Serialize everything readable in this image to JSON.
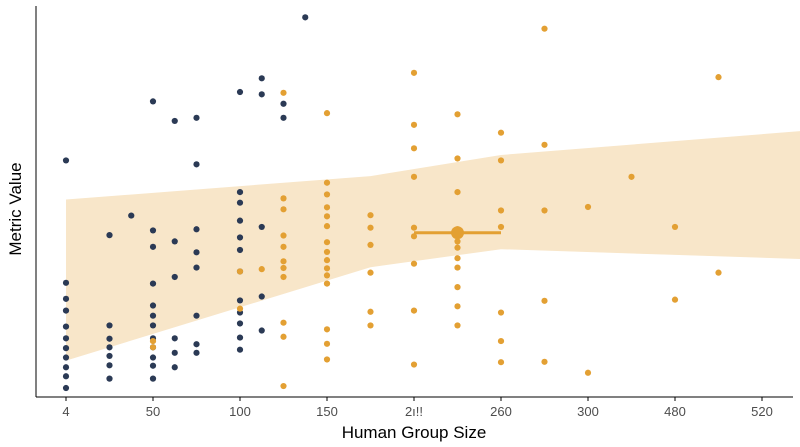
{
  "chart_data": {
    "type": "scatter",
    "title": "",
    "xlabel": "Human Group Size",
    "ylabel": "Metric Value",
    "x_tick_labels": [
      "4",
      "50",
      "100",
      "150",
      "2ı!!",
      "260",
      "300",
      "480",
      "520"
    ],
    "x_scale": "categorical-spaced",
    "y_tick_labels": [],
    "ylim": [
      0,
      100
    ],
    "grid": false,
    "legend": "none",
    "colors": {
      "series_navy": "#2b3a55",
      "series_gold": "#e3a033",
      "band_fill": "#f8e6c9",
      "axis": "#000000"
    },
    "series": [
      {
        "points": [
          [
            0,
            60.5
          ],
          [
            0,
            29.2
          ],
          [
            0,
            25.1
          ],
          [
            0,
            22.1
          ],
          [
            0,
            18.0
          ],
          [
            0,
            15.0
          ],
          [
            0,
            12.5
          ],
          [
            0,
            10.1
          ],
          [
            0,
            7.6
          ],
          [
            0,
            5.3
          ],
          [
            0,
            2.3
          ],
          [
            0.5,
            41.4
          ],
          [
            0.5,
            18.3
          ],
          [
            0.5,
            14.9
          ],
          [
            0.5,
            12.7
          ],
          [
            0.5,
            10.5
          ],
          [
            0.5,
            8.1
          ],
          [
            0.5,
            4.7
          ],
          [
            0.75,
            46.4
          ],
          [
            1,
            75.6
          ],
          [
            1,
            42.6
          ],
          [
            1,
            38.4
          ],
          [
            1,
            29.0
          ],
          [
            1,
            23.4
          ],
          [
            1,
            20.8
          ],
          [
            1,
            18.3
          ],
          [
            1,
            15.0
          ],
          [
            1,
            12.7
          ],
          [
            1,
            10.1
          ],
          [
            1,
            8.0
          ],
          [
            1,
            4.7
          ],
          [
            1.25,
            70.6
          ],
          [
            1.25,
            39.8
          ],
          [
            1.25,
            30.7
          ],
          [
            1.25,
            15.0
          ],
          [
            1.25,
            11.3
          ],
          [
            1.25,
            7.6
          ],
          [
            1.5,
            71.4
          ],
          [
            1.5,
            59.5
          ],
          [
            1.5,
            42.9
          ],
          [
            1.5,
            37.0
          ],
          [
            1.5,
            33.1
          ],
          [
            1.5,
            20.8
          ],
          [
            1.5,
            13.5
          ],
          [
            1.5,
            11.3
          ],
          [
            2,
            78.0
          ],
          [
            2,
            52.4
          ],
          [
            2,
            49.7
          ],
          [
            2,
            45.1
          ],
          [
            2,
            40.8
          ],
          [
            2,
            37.6
          ],
          [
            2,
            32.1
          ],
          [
            2,
            24.7
          ],
          [
            2,
            21.6
          ],
          [
            2,
            18.8
          ],
          [
            2,
            15.2
          ],
          [
            2,
            12.1
          ],
          [
            2.25,
            81.5
          ],
          [
            2.25,
            77.4
          ],
          [
            2.25,
            43.5
          ],
          [
            2.25,
            25.7
          ],
          [
            2.25,
            17.0
          ],
          [
            2.5,
            75.0
          ],
          [
            2.5,
            71.4
          ],
          [
            2.75,
            97.1
          ]
        ]
      },
      {
        "points": [
          [
            1,
            14.3
          ],
          [
            1,
            12.7
          ],
          [
            2,
            22.6
          ],
          [
            2,
            32.1
          ],
          [
            2.25,
            32.7
          ],
          [
            2.5,
            77.8
          ],
          [
            2.5,
            50.8
          ],
          [
            2.5,
            48.0
          ],
          [
            2.5,
            41.3
          ],
          [
            2.5,
            38.4
          ],
          [
            2.5,
            34.7
          ],
          [
            2.5,
            33.0
          ],
          [
            2.5,
            30.7
          ],
          [
            2.5,
            19.0
          ],
          [
            2.5,
            15.4
          ],
          [
            2.5,
            2.8
          ],
          [
            3,
            72.6
          ],
          [
            3,
            54.8
          ],
          [
            3,
            51.8
          ],
          [
            3,
            48.5
          ],
          [
            3,
            46.2
          ],
          [
            3,
            43.7
          ],
          [
            3,
            39.6
          ],
          [
            3,
            37.1
          ],
          [
            3,
            35.0
          ],
          [
            3,
            32.9
          ],
          [
            3,
            31.1
          ],
          [
            3,
            29.0
          ],
          [
            3,
            17.3
          ],
          [
            3,
            13.6
          ],
          [
            3,
            9.6
          ],
          [
            3.5,
            46.5
          ],
          [
            3.5,
            43.3
          ],
          [
            3.5,
            38.9
          ],
          [
            3.5,
            31.8
          ],
          [
            3.5,
            21.8
          ],
          [
            3.5,
            18.3
          ],
          [
            4,
            82.9
          ],
          [
            4,
            69.6
          ],
          [
            4,
            63.6
          ],
          [
            4,
            56.3
          ],
          [
            4,
            43.3
          ],
          [
            4,
            41.1
          ],
          [
            4,
            34.1
          ],
          [
            4,
            22.1
          ],
          [
            4,
            8.3
          ],
          [
            4.5,
            72.3
          ],
          [
            4.5,
            61.0
          ],
          [
            4.5,
            52.4
          ],
          [
            4.5,
            42.9
          ],
          [
            4.5,
            39.8
          ],
          [
            4.5,
            38.2
          ],
          [
            4.5,
            35.5
          ],
          [
            4.5,
            33.1
          ],
          [
            4.5,
            28.1
          ],
          [
            4.5,
            23.2
          ],
          [
            4.5,
            18.3
          ],
          [
            5,
            67.6
          ],
          [
            5,
            60.5
          ],
          [
            5,
            47.7
          ],
          [
            5,
            43.5
          ],
          [
            5,
            21.6
          ],
          [
            5,
            14.3
          ],
          [
            5,
            8.9
          ],
          [
            5.5,
            94.2
          ],
          [
            5.5,
            64.5
          ],
          [
            5.5,
            47.7
          ],
          [
            5.5,
            24.6
          ],
          [
            5.5,
            9.0
          ],
          [
            6,
            48.6
          ],
          [
            6,
            6.2
          ],
          [
            6.5,
            56.3
          ],
          [
            7,
            43.5
          ],
          [
            7,
            24.9
          ],
          [
            7.5,
            81.8
          ],
          [
            7.5,
            31.8
          ],
          [
            8.5,
            13.5
          ],
          [
            9,
            82.3
          ],
          [
            9,
            44.2
          ],
          [
            9,
            42.3
          ]
        ]
      }
    ],
    "trend_band": {
      "x": [
        0,
        3.5,
        5,
        9
      ],
      "upper": [
        50.5,
        56.5,
        61.9,
        69.0
      ],
      "lower": [
        9.3,
        33.2,
        37.8,
        34.9
      ]
    },
    "summary_point": {
      "x": 4.5,
      "y": 42.0,
      "x_error": [
        4.0,
        5.0
      ]
    }
  }
}
